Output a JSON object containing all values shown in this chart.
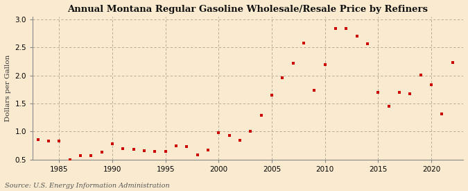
{
  "title": "Annual Montana Regular Gasoline Wholesale/Resale Price by Refiners",
  "ylabel": "Dollars per Gallon",
  "source": "Source: U.S. Energy Information Administration",
  "background_color": "#faebd0",
  "marker_color": "#cc0000",
  "xlim": [
    1982.5,
    2023.0
  ],
  "ylim": [
    0.5,
    3.05
  ],
  "yticks": [
    0.5,
    1.0,
    1.5,
    2.0,
    2.5,
    3.0
  ],
  "xticks": [
    1985,
    1990,
    1995,
    2000,
    2005,
    2010,
    2015,
    2020
  ],
  "years": [
    1983,
    1984,
    1985,
    1986,
    1987,
    1988,
    1989,
    1990,
    1991,
    1992,
    1993,
    1994,
    1995,
    1996,
    1997,
    1998,
    1999,
    2000,
    2001,
    2002,
    2003,
    2004,
    2005,
    2006,
    2007,
    2008,
    2009,
    2010,
    2011,
    2012,
    2013,
    2014,
    2015,
    2016,
    2017,
    2018,
    2019,
    2020,
    2021,
    2022
  ],
  "values": [
    0.86,
    0.83,
    0.83,
    0.5,
    0.57,
    0.57,
    0.63,
    0.78,
    0.7,
    0.68,
    0.66,
    0.65,
    0.65,
    0.75,
    0.73,
    0.58,
    0.67,
    0.98,
    0.93,
    0.84,
    1.0,
    1.29,
    1.65,
    1.96,
    2.22,
    2.58,
    1.74,
    2.2,
    2.84,
    2.84,
    2.7,
    2.56,
    1.7,
    1.45,
    1.7,
    1.68,
    2.01,
    1.84,
    1.31,
    2.23
  ]
}
